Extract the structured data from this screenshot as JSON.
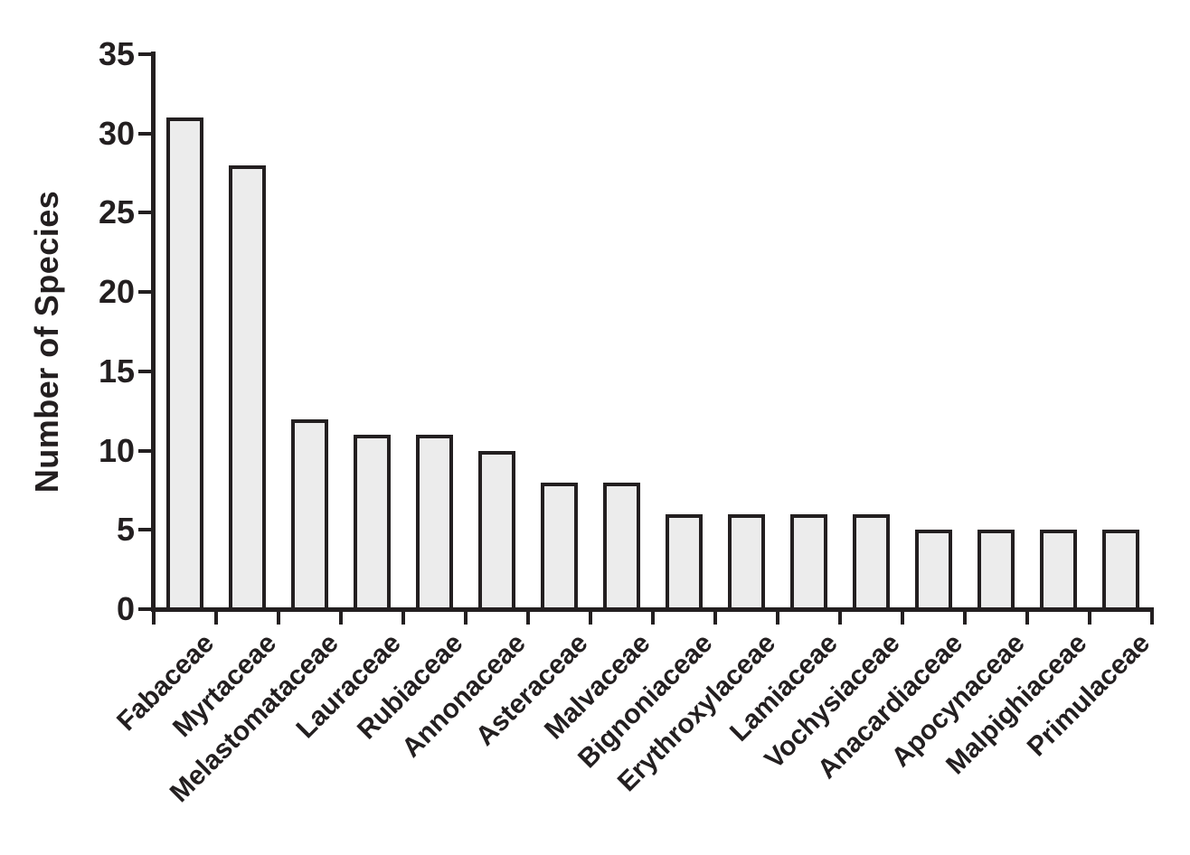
{
  "chart_data": {
    "type": "bar",
    "title": "",
    "ylabel": "Number of Species",
    "xlabel": "",
    "categories": [
      "Fabaceae",
      "Myrtaceae",
      "Melastomataceae",
      "Lauraceae",
      "Rubiaceae",
      "Annonaceae",
      "Asteraceae",
      "Malvaceae",
      "Bignoniaceae",
      "Erythroxylaceae",
      "Lamiaceae",
      "Vochysiaceae",
      "Anacardiaceae",
      "Apocynaceae",
      "Malpighiaceae",
      "Primulaceae"
    ],
    "values": [
      31,
      28,
      12,
      11,
      11,
      10,
      8,
      8,
      6,
      6,
      6,
      6,
      5,
      5,
      5,
      5
    ],
    "ylim": [
      0,
      35
    ],
    "yticks": [
      0,
      5,
      10,
      15,
      20,
      25,
      30,
      35
    ],
    "xtick_rotation_deg": 45,
    "grid": false,
    "legend": "none",
    "colors": {
      "bar_fill": "#ececec",
      "bar_border": "#231f20",
      "axis": "#231f20",
      "text": "#231f20",
      "background": "#ffffff"
    }
  }
}
